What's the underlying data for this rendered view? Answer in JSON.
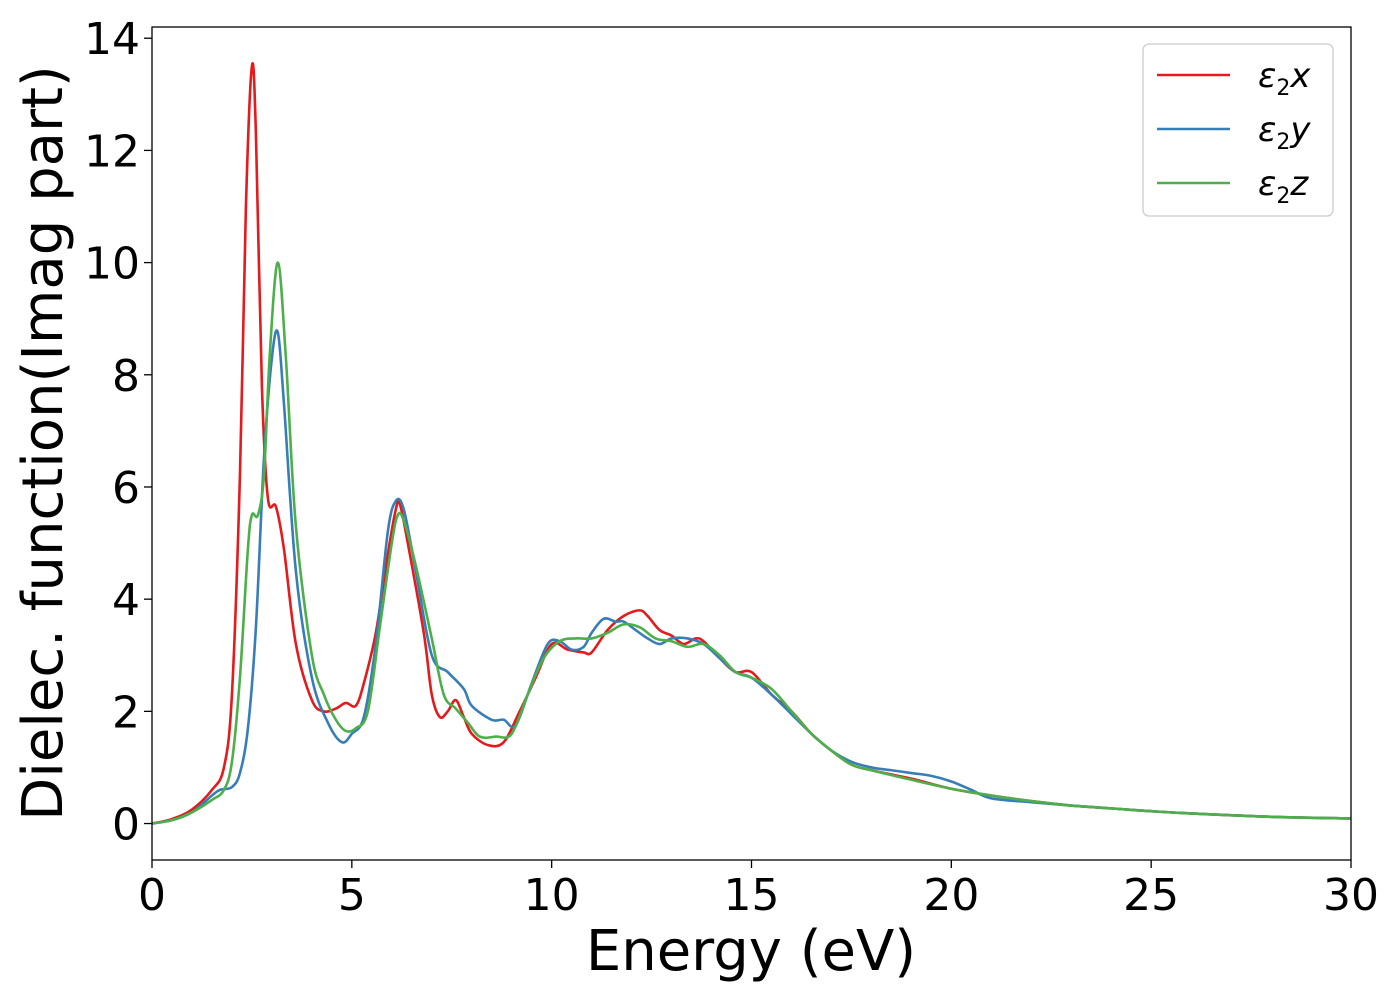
{
  "chart_data": {
    "type": "line",
    "xlabel": "Energy (eV)",
    "ylabel": "Dielec. function(Imag part)",
    "xlim": [
      0,
      30
    ],
    "ylim": [
      -0.65,
      14.2
    ],
    "xticks": [
      0,
      5,
      10,
      15,
      20,
      25,
      30
    ],
    "yticks": [
      0,
      2,
      4,
      6,
      8,
      10,
      12,
      14
    ],
    "grid": false,
    "legend_position": "top-right",
    "series": [
      {
        "name": "ε2x",
        "legend": {
          "base": "ε",
          "sub": "2",
          "suffix": "x"
        },
        "color": "#e41a1c",
        "x": [
          0,
          0.5,
          1.0,
          1.5,
          1.8,
          2.0,
          2.2,
          2.35,
          2.5,
          2.6,
          2.75,
          2.9,
          3.1,
          3.3,
          3.6,
          4.0,
          4.3,
          4.6,
          4.85,
          5.1,
          5.3,
          5.6,
          5.9,
          6.1,
          6.2,
          6.4,
          6.8,
          7.0,
          7.2,
          7.4,
          7.6,
          7.8,
          8.0,
          8.4,
          8.8,
          9.2,
          9.6,
          10.0,
          10.4,
          10.8,
          11.0,
          11.4,
          11.8,
          12.2,
          12.4,
          12.7,
          13.0,
          13.3,
          13.6,
          13.8,
          14.2,
          14.6,
          15.0,
          15.5,
          16.0,
          16.5,
          17.0,
          17.5,
          18.0,
          19.0,
          20.0,
          21.0,
          22.0,
          23.0,
          24.0,
          25.0,
          26.0,
          28.0,
          30.0
        ],
        "values": [
          0,
          0.08,
          0.25,
          0.6,
          1.0,
          2.3,
          6.2,
          11.0,
          13.5,
          12.3,
          7.8,
          5.8,
          5.65,
          4.9,
          3.2,
          2.2,
          2.0,
          2.05,
          2.15,
          2.1,
          2.5,
          3.4,
          4.8,
          5.6,
          5.7,
          5.0,
          3.4,
          2.3,
          1.9,
          2.0,
          2.2,
          1.9,
          1.6,
          1.4,
          1.45,
          2.0,
          2.6,
          3.2,
          3.1,
          3.05,
          3.05,
          3.45,
          3.7,
          3.8,
          3.7,
          3.45,
          3.35,
          3.2,
          3.3,
          3.25,
          2.95,
          2.7,
          2.7,
          2.3,
          2.0,
          1.6,
          1.3,
          1.05,
          0.95,
          0.8,
          0.62,
          0.5,
          0.4,
          0.32,
          0.27,
          0.22,
          0.18,
          0.12,
          0.09
        ]
      },
      {
        "name": "ε2y",
        "legend": {
          "base": "ε",
          "sub": "2",
          "suffix": "y"
        },
        "color": "#377eb8",
        "x": [
          0,
          0.5,
          1.0,
          1.5,
          1.7,
          2.0,
          2.2,
          2.4,
          2.6,
          2.8,
          3.0,
          3.15,
          3.3,
          3.6,
          4.0,
          4.4,
          4.75,
          5.0,
          5.3,
          5.6,
          5.9,
          6.1,
          6.3,
          6.6,
          7.0,
          7.4,
          7.8,
          8.0,
          8.5,
          8.8,
          9.1,
          9.5,
          9.9,
          10.2,
          10.5,
          10.8,
          11.0,
          11.3,
          11.6,
          11.8,
          12.1,
          12.4,
          12.7,
          13.0,
          13.4,
          13.8,
          14.2,
          14.6,
          15.0,
          15.5,
          16.0,
          16.5,
          17.0,
          17.5,
          18.0,
          18.5,
          19.0,
          19.5,
          20.0,
          20.5,
          21.0,
          22.0,
          23.0,
          24.0,
          25.0,
          26.0,
          28.0,
          30.0
        ],
        "values": [
          0,
          0.06,
          0.2,
          0.5,
          0.6,
          0.65,
          0.9,
          1.7,
          3.5,
          6.5,
          8.3,
          8.75,
          7.5,
          4.5,
          2.6,
          1.8,
          1.45,
          1.6,
          1.9,
          3.2,
          5.2,
          5.75,
          5.6,
          4.5,
          3.0,
          2.7,
          2.4,
          2.1,
          1.85,
          1.85,
          1.75,
          2.5,
          3.2,
          3.25,
          3.1,
          3.15,
          3.4,
          3.65,
          3.6,
          3.6,
          3.45,
          3.3,
          3.2,
          3.3,
          3.3,
          3.2,
          2.95,
          2.7,
          2.6,
          2.3,
          1.95,
          1.6,
          1.3,
          1.1,
          1.0,
          0.95,
          0.9,
          0.85,
          0.75,
          0.6,
          0.45,
          0.38,
          0.32,
          0.27,
          0.22,
          0.18,
          0.12,
          0.09
        ]
      },
      {
        "name": "ε2z",
        "legend": {
          "base": "ε",
          "sub": "2",
          "suffix": "z"
        },
        "color": "#4daf4a",
        "x": [
          0,
          0.5,
          1.0,
          1.5,
          1.8,
          2.0,
          2.2,
          2.4,
          2.5,
          2.65,
          2.8,
          2.95,
          3.15,
          3.35,
          3.6,
          4.0,
          4.3,
          4.6,
          4.85,
          5.1,
          5.4,
          5.7,
          6.0,
          6.15,
          6.3,
          6.6,
          7.0,
          7.3,
          7.6,
          7.9,
          8.2,
          8.6,
          9.0,
          9.4,
          9.8,
          10.2,
          10.6,
          11.0,
          11.4,
          11.8,
          12.2,
          12.6,
          13.0,
          13.4,
          13.8,
          14.2,
          14.6,
          15.0,
          15.5,
          16.0,
          16.5,
          17.0,
          17.5,
          18.0,
          19.0,
          20.0,
          21.0,
          22.0,
          23.0,
          24.0,
          25.0,
          26.0,
          28.0,
          30.0
        ],
        "values": [
          0,
          0.06,
          0.2,
          0.42,
          0.6,
          1.1,
          2.6,
          4.9,
          5.5,
          5.5,
          6.2,
          8.4,
          10.0,
          8.3,
          5.3,
          3.0,
          2.3,
          1.85,
          1.65,
          1.7,
          2.0,
          3.5,
          5.0,
          5.5,
          5.4,
          4.6,
          3.3,
          2.3,
          2.05,
          1.8,
          1.55,
          1.55,
          1.6,
          2.3,
          2.95,
          3.25,
          3.3,
          3.3,
          3.4,
          3.55,
          3.5,
          3.3,
          3.25,
          3.15,
          3.2,
          3.0,
          2.7,
          2.6,
          2.4,
          2.0,
          1.6,
          1.3,
          1.05,
          0.95,
          0.78,
          0.62,
          0.5,
          0.4,
          0.32,
          0.27,
          0.22,
          0.18,
          0.12,
          0.09
        ]
      }
    ]
  }
}
